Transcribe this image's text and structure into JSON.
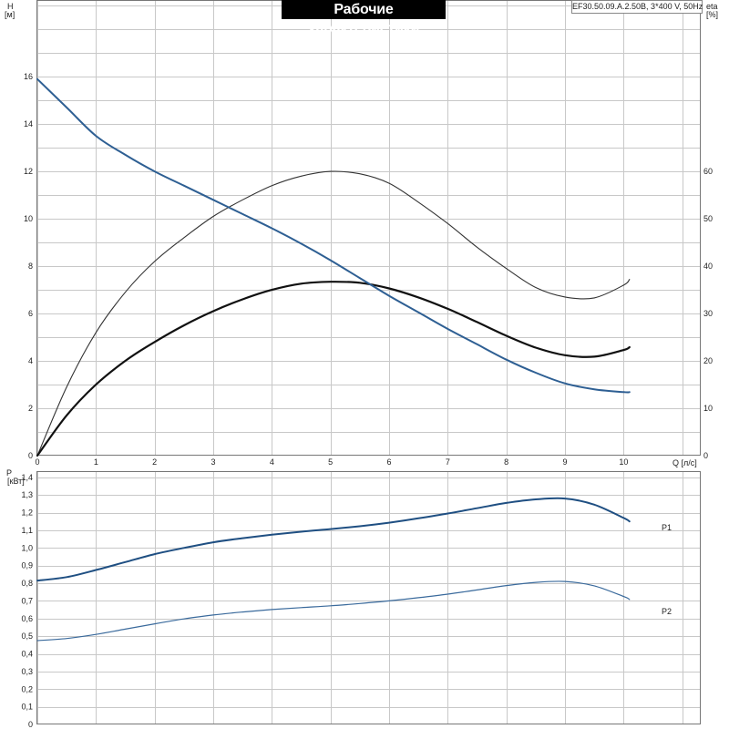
{
  "title": "Рабочие характеристики",
  "model_label": "EF30.50.09.A.2.50B, 3*400 V, 50Hz",
  "colors": {
    "head_curve": "#2e5f93",
    "eta_curve": "#333333",
    "npsh_curve": "#111111",
    "p1_curve": "#1f4f82",
    "p2_curve": "#3a6a9c",
    "grid": "#c8c8c8"
  },
  "chart_data": [
    {
      "type": "line",
      "title": "Рабочие характеристики",
      "xlabel": "Q [л/с]",
      "ylabel": "H [м]",
      "y2label": "eta [%]",
      "xlim": [
        0,
        11.3
      ],
      "ylim": [
        0,
        19.2
      ],
      "y2lim": [
        0,
        96
      ],
      "x_ticks": [
        0,
        1,
        2,
        3,
        4,
        5,
        6,
        7,
        8,
        9,
        10
      ],
      "y_ticks": [
        0,
        2,
        4,
        6,
        8,
        10,
        12,
        14,
        16
      ],
      "y2_ticks": [
        0,
        10,
        20,
        30,
        40,
        50,
        60
      ],
      "grid": true,
      "series": [
        {
          "axis": "left",
          "x": [
            0,
            0.5,
            1,
            1.5,
            2,
            2.5,
            3,
            3.5,
            4,
            4.5,
            5,
            5.5,
            6,
            6.5,
            7,
            7.5,
            8,
            8.5,
            9,
            9.5,
            10,
            10.1
          ],
          "values": [
            15.9,
            14.7,
            13.5,
            12.7,
            12.0,
            11.4,
            10.8,
            10.2,
            9.6,
            8.95,
            8.25,
            7.5,
            6.75,
            6.05,
            5.35,
            4.7,
            4.05,
            3.5,
            3.05,
            2.8,
            2.68,
            2.68
          ]
        },
        {
          "axis": "right",
          "x": [
            0,
            0.5,
            1,
            1.5,
            2,
            2.5,
            3,
            3.5,
            4,
            4.5,
            5,
            5.5,
            6,
            6.5,
            7,
            7.5,
            8,
            8.5,
            9,
            9.5,
            10,
            10.1
          ],
          "values": [
            0,
            14.5,
            26,
            34.5,
            41,
            46,
            50.5,
            54,
            57,
            59,
            60,
            59.5,
            57.5,
            53.5,
            49,
            44,
            39.5,
            35.5,
            33.5,
            33.3,
            36,
            37.2
          ]
        },
        {
          "axis": "right",
          "x": [
            0,
            0.5,
            1,
            1.5,
            2,
            2.5,
            3,
            3.5,
            4,
            4.5,
            5,
            5.5,
            6,
            6.5,
            7,
            7.5,
            8,
            8.5,
            9,
            9.5,
            10,
            10.1
          ],
          "values": [
            0,
            8.5,
            15,
            20,
            24,
            27.5,
            30.5,
            33,
            35,
            36.3,
            36.7,
            36.5,
            35.3,
            33.4,
            31,
            28.2,
            25.3,
            22.8,
            21.2,
            20.9,
            22.3,
            22.9
          ]
        }
      ]
    },
    {
      "type": "line",
      "xlabel": "",
      "ylabel": "P [кВт]",
      "xlim": [
        0,
        11.3
      ],
      "ylim": [
        0,
        1.43
      ],
      "y_ticks": [
        "0",
        "0,1",
        "0,2",
        "0,3",
        "0,4",
        "0,5",
        "0,6",
        "0,7",
        "0,8",
        "0,9",
        "1,0",
        "1,1",
        "1,2",
        "1,3",
        "1,4"
      ],
      "grid": true,
      "series": [
        {
          "name": "P1",
          "x": [
            0,
            0.5,
            1,
            1.5,
            2,
            2.5,
            3,
            3.5,
            4,
            4.5,
            5,
            5.5,
            6,
            6.5,
            7,
            7.5,
            8,
            8.5,
            9,
            9.5,
            10,
            10.1
          ],
          "values": [
            0.815,
            0.835,
            0.875,
            0.92,
            0.965,
            1.0,
            1.032,
            1.055,
            1.075,
            1.092,
            1.107,
            1.123,
            1.143,
            1.168,
            1.195,
            1.225,
            1.255,
            1.275,
            1.28,
            1.245,
            1.17,
            1.15
          ]
        },
        {
          "name": "P2",
          "x": [
            0,
            0.5,
            1,
            1.5,
            2,
            2.5,
            3,
            3.5,
            4,
            4.5,
            5,
            5.5,
            6,
            6.5,
            7,
            7.5,
            8,
            8.5,
            9,
            9.5,
            10,
            10.1
          ],
          "values": [
            0.475,
            0.487,
            0.51,
            0.54,
            0.57,
            0.598,
            0.62,
            0.637,
            0.651,
            0.662,
            0.672,
            0.685,
            0.7,
            0.718,
            0.738,
            0.762,
            0.787,
            0.805,
            0.81,
            0.785,
            0.725,
            0.708
          ]
        }
      ]
    }
  ],
  "top_axis": {
    "ylabel_line1": "H",
    "ylabel_line2": "[м]",
    "y2label_line1": "eta",
    "y2label_line2": "[%]",
    "xlabel": "Q [л/с]"
  },
  "bottom_axis": {
    "ylabel_line1": "P",
    "ylabel_line2": "[кВт]",
    "p1_label": "P1",
    "p2_label": "P2"
  }
}
